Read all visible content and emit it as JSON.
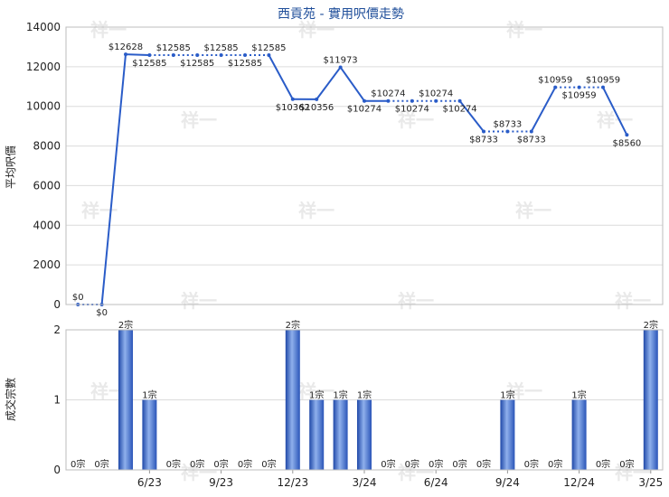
{
  "chart_data": [
    {
      "type": "line",
      "title": "西貢苑 - 實用呎價走勢",
      "ylabel": "平均呎價",
      "ylim": [
        0,
        14000
      ],
      "yticks": [
        "0",
        "2000",
        "4000",
        "6000",
        "8000",
        "10000",
        "12000",
        "14000"
      ],
      "grid": true,
      "line_color": "#2a5cc8",
      "points": [
        {
          "x": "3/23",
          "y": 0,
          "label": "$0",
          "dashed_to_next": true
        },
        {
          "x": "4/23",
          "y": 0,
          "label": "$0",
          "dashed_to_next": false
        },
        {
          "x": "5/23",
          "y": 12628,
          "label": "$12628",
          "dashed_to_next": false
        },
        {
          "x": "6/23",
          "y": 12585,
          "label": "$12585",
          "dashed_to_next": true
        },
        {
          "x": "7/23",
          "y": 12585,
          "label": "$12585",
          "dashed_to_next": true
        },
        {
          "x": "8/23",
          "y": 12585,
          "label": "$12585",
          "dashed_to_next": true
        },
        {
          "x": "9/23",
          "y": 12585,
          "label": "$12585",
          "dashed_to_next": true
        },
        {
          "x": "10/23",
          "y": 12585,
          "label": "$12585",
          "dashed_to_next": true
        },
        {
          "x": "11/23",
          "y": 12585,
          "label": "$12585",
          "dashed_to_next": false
        },
        {
          "x": "12/23",
          "y": 10362,
          "label": "$10362",
          "dashed_to_next": false
        },
        {
          "x": "1/24",
          "y": 10356,
          "label": "$10356",
          "dashed_to_next": false
        },
        {
          "x": "2/24",
          "y": 11973,
          "label": "$11973",
          "dashed_to_next": false
        },
        {
          "x": "3/24",
          "y": 10274,
          "label": "$10274",
          "dashed_to_next": false
        },
        {
          "x": "4/24",
          "y": 10274,
          "label": "$10274",
          "dashed_to_next": true
        },
        {
          "x": "5/24",
          "y": 10274,
          "label": "$10274",
          "dashed_to_next": true
        },
        {
          "x": "6/24",
          "y": 10274,
          "label": "$10274",
          "dashed_to_next": true
        },
        {
          "x": "7/24",
          "y": 10274,
          "label": "$10274",
          "dashed_to_next": false
        },
        {
          "x": "8/24",
          "y": 8733,
          "label": "$8733",
          "dashed_to_next": true
        },
        {
          "x": "9/24",
          "y": 8733,
          "label": "$8733",
          "dashed_to_next": true
        },
        {
          "x": "10/24",
          "y": 8733,
          "label": "$8733",
          "dashed_to_next": false
        },
        {
          "x": "11/24",
          "y": 10959,
          "label": "$10959",
          "dashed_to_next": true
        },
        {
          "x": "12/24",
          "y": 10959,
          "label": "$10959",
          "dashed_to_next": true
        },
        {
          "x": "1/25",
          "y": 10959,
          "label": "$10959",
          "dashed_to_next": false
        },
        {
          "x": "2/25",
          "y": 8560,
          "label": "$8560",
          "dashed_to_next": false
        }
      ]
    },
    {
      "type": "bar",
      "ylabel": "成交宗數",
      "ylim": [
        0,
        2
      ],
      "yticks": [
        "0",
        "1",
        "2"
      ],
      "grid": true,
      "bar_color": "#3a67c6",
      "categories": [
        "3/23",
        "4/23",
        "5/23",
        "6/23",
        "7/23",
        "8/23",
        "9/23",
        "10/23",
        "11/23",
        "12/23",
        "1/24",
        "2/24",
        "3/24",
        "4/24",
        "5/24",
        "6/24",
        "7/24",
        "8/24",
        "9/24",
        "10/24",
        "11/24",
        "12/24",
        "1/25",
        "2/25",
        "3/25"
      ],
      "values": [
        0,
        0,
        2,
        1,
        0,
        0,
        0,
        0,
        0,
        2,
        1,
        1,
        1,
        0,
        0,
        0,
        0,
        0,
        1,
        0,
        0,
        1,
        0,
        0,
        2
      ],
      "value_labels": [
        "0宗",
        "0宗",
        "2宗",
        "1宗",
        "0宗",
        "0宗",
        "0宗",
        "0宗",
        "0宗",
        "2宗",
        "1宗",
        "1宗",
        "1宗",
        "0宗",
        "0宗",
        "0宗",
        "0宗",
        "0宗",
        "1宗",
        "0宗",
        "0宗",
        "1宗",
        "0宗",
        "0宗",
        "2宗"
      ],
      "xtick_labels": [
        "6/23",
        "9/23",
        "12/23",
        "3/24",
        "6/24",
        "9/24",
        "12/24",
        "3/25"
      ],
      "xtick_categories": [
        "6/23",
        "9/23",
        "12/23",
        "3/24",
        "6/24",
        "9/24",
        "12/24",
        "3/25"
      ]
    }
  ],
  "watermark_text": "祥一"
}
